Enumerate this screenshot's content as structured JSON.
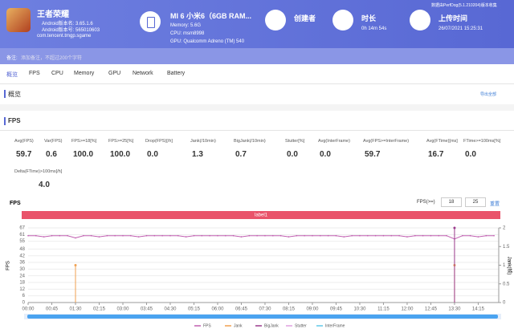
{
  "app": {
    "name": "王者荣耀",
    "version_name": "Android版本名: 3.65.1.6",
    "version_code": "Android版本号: 565010603",
    "package": "com.tencent.tmgp.sgame"
  },
  "device": {
    "name": "MI 6 小米6（6GB RAM...",
    "memory": "Memory: 5.6G",
    "cpu": "CPU: msm8998",
    "gpu": "GPU: Qualcomm Adreno (TM) 540"
  },
  "creator": {
    "label": "创建者"
  },
  "duration": {
    "label": "时长",
    "value": "0h 14m 54s"
  },
  "upload": {
    "label": "上传时间",
    "value": "26/07/2021 15:25:31",
    "note": "数据由PerfDog(5.1.210204)版本收集"
  },
  "remark": {
    "label": "备注:",
    "placeholder": "添加备注，不超过200个字符"
  },
  "tabs": [
    "概览",
    "FPS",
    "CPU",
    "Memory",
    "GPU",
    "Network",
    "Battery"
  ],
  "overview": {
    "title": "概览",
    "export": "导出全部"
  },
  "fps_section": {
    "title": "FPS",
    "stats": [
      {
        "label": "Avg(FPS)",
        "value": "59.7"
      },
      {
        "label": "Var(FPS)",
        "value": "0.6"
      },
      {
        "label": "FPS>=18[%]",
        "value": "100.0"
      },
      {
        "label": "FPS>=25[%]",
        "value": "100.0"
      },
      {
        "label": "Drop(FPS)[/h]",
        "value": "0.0"
      },
      {
        "label": "Jank(/10min)",
        "value": "1.3"
      },
      {
        "label": "BigJank(/10min)",
        "value": "0.7"
      },
      {
        "label": "Stutter[%]",
        "value": "0.0"
      },
      {
        "label": "Avg(InterFrame)",
        "value": "0.0"
      },
      {
        "label": "Avg(FPS>=InterFrame)",
        "value": "59.7"
      },
      {
        "label": "Avg(FTime)[ms]",
        "value": "16.7"
      },
      {
        "label": "FTime>=100ms[%]",
        "value": "0.0"
      },
      {
        "label": "Delta(FTime)>100ms[/h]",
        "value": "4.0"
      }
    ]
  },
  "filter": {
    "label": "FPS(>=)",
    "values": [
      "18",
      "25"
    ],
    "reset": "重置"
  },
  "chart_data": {
    "type": "line",
    "title": "FPS",
    "band_label": "label1",
    "y_label": "FPS",
    "y2_label": "Jank(帧)",
    "x": [
      0,
      15,
      30,
      45,
      60,
      75,
      90,
      105,
      120,
      135,
      150,
      165,
      180,
      195,
      210,
      225,
      240,
      255,
      270,
      285,
      300,
      315,
      330,
      345,
      360,
      375,
      390,
      405,
      420,
      435,
      450,
      465,
      480,
      495,
      510,
      525,
      540,
      555,
      570,
      585,
      600,
      615,
      630,
      645,
      660,
      675,
      690,
      705,
      720,
      735,
      750,
      765,
      780,
      795,
      810,
      825,
      840,
      855,
      870,
      885
    ],
    "series": [
      {
        "name": "FPS",
        "color": "#c05fb0",
        "values": [
          60,
          60,
          59,
          60,
          60,
          60,
          58,
          60,
          60,
          59,
          60,
          60,
          60,
          60,
          59,
          60,
          60,
          60,
          60,
          60,
          59,
          60,
          60,
          60,
          60,
          60,
          60,
          59,
          60,
          60,
          60,
          60,
          60,
          59,
          60,
          60,
          60,
          60,
          60,
          60,
          59,
          60,
          60,
          60,
          60,
          60,
          60,
          60,
          59,
          60,
          60,
          60,
          60,
          60,
          57,
          60,
          60,
          59,
          60,
          60
        ]
      },
      {
        "name": "Jank",
        "color": "#f0a050",
        "axis": "y2",
        "x": [
          90,
          810
        ],
        "values": [
          1,
          1
        ]
      },
      {
        "name": "BigJank",
        "color": "#9b3a8c",
        "axis": "y2",
        "x": [
          810
        ],
        "values": [
          2
        ]
      },
      {
        "name": "Stutter",
        "color": "#e0a0e0"
      },
      {
        "name": "InterFrame",
        "color": "#60c8e8"
      }
    ],
    "xlim": [
      0,
      894
    ],
    "xticks": [
      {
        "value": 0,
        "label": "00:00"
      },
      {
        "value": 45,
        "label": "00:45"
      },
      {
        "value": 90,
        "label": "01:30"
      },
      {
        "value": 135,
        "label": "02:15"
      },
      {
        "value": 180,
        "label": "03:00"
      },
      {
        "value": 225,
        "label": "03:45"
      },
      {
        "value": 270,
        "label": "04:30"
      },
      {
        "value": 315,
        "label": "05:15"
      },
      {
        "value": 360,
        "label": "06:00"
      },
      {
        "value": 405,
        "label": "06:45"
      },
      {
        "value": 450,
        "label": "07:30"
      },
      {
        "value": 495,
        "label": "08:15"
      },
      {
        "value": 540,
        "label": "09:00"
      },
      {
        "value": 585,
        "label": "09:45"
      },
      {
        "value": 630,
        "label": "10:30"
      },
      {
        "value": 675,
        "label": "11:15"
      },
      {
        "value": 720,
        "label": "12:00"
      },
      {
        "value": 765,
        "label": "12:45"
      },
      {
        "value": 810,
        "label": "13:30"
      },
      {
        "value": 855,
        "label": "14:15"
      }
    ],
    "ylim": [
      0,
      67
    ],
    "yticks": [
      0,
      6,
      12,
      18,
      24,
      30,
      36,
      42,
      48,
      55,
      61,
      67
    ],
    "y2lim": [
      0,
      2
    ],
    "y2ticks": [
      0,
      0.5,
      1,
      1.5,
      2
    ],
    "grid": true
  }
}
